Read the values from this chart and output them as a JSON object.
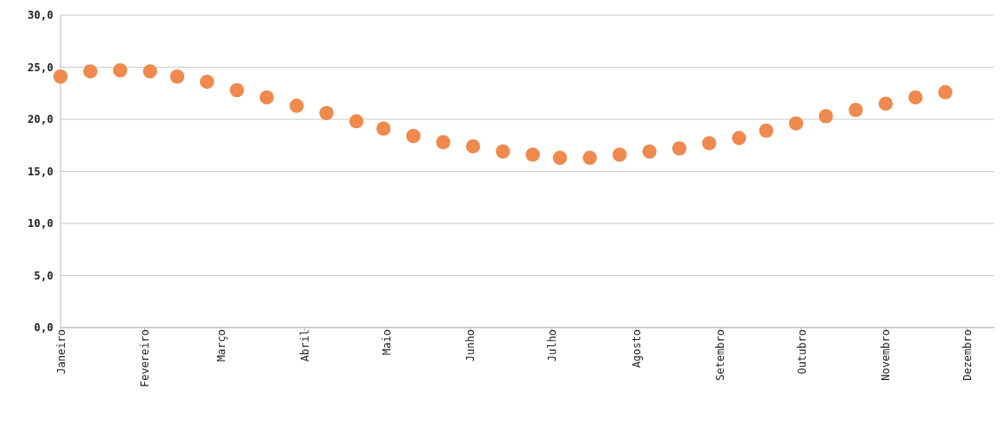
{
  "chart_data": {
    "type": "scatter",
    "x": [
      "--01-01",
      "--01-12",
      "--01-23",
      "--02-03",
      "--02-13",
      "--02-24",
      "--03-07",
      "--03-18",
      "--03-29",
      "--04-09",
      "--04-20",
      "--04-30",
      "--05-11",
      "--05-22",
      "--06-02",
      "--06-13",
      "--06-24",
      "--07-04",
      "--07-15",
      "--07-26",
      "--08-06",
      "--08-17",
      "--08-28",
      "--09-08",
      "--09-18",
      "--09-29",
      "--10-10",
      "--10-21",
      "--11-01",
      "--11-12",
      "--11-23"
    ],
    "series": [
      {
        "color": "#f0894e",
        "values": [
          24.1,
          24.6,
          24.7,
          24.6,
          24.1,
          23.6,
          22.8,
          22.1,
          21.3,
          20.6,
          19.8,
          19.1,
          18.4,
          17.8,
          17.4,
          16.9,
          16.6,
          16.3,
          16.3,
          16.6,
          16.9,
          17.2,
          17.7,
          18.2,
          18.9,
          19.6,
          20.3,
          20.9,
          21.5,
          22.1,
          22.6
        ]
      }
    ],
    "xlim": [
      "--01-01",
      "--12-11"
    ],
    "xticks": [
      {
        "value": "--01-01",
        "label": "Janeiro"
      },
      {
        "value": "--02-01",
        "label": "Fevereiro"
      },
      {
        "value": "--03-01",
        "label": "Março"
      },
      {
        "value": "--04-01",
        "label": "Abril"
      },
      {
        "value": "--05-01",
        "label": "Maio"
      },
      {
        "value": "--06-01",
        "label": "Junho"
      },
      {
        "value": "--07-01",
        "label": "Julho"
      },
      {
        "value": "--08-01",
        "label": "Agosto"
      },
      {
        "value": "--09-01",
        "label": "Setembro"
      },
      {
        "value": "--10-01",
        "label": "Outubro"
      },
      {
        "value": "--11-01",
        "label": "Novembro"
      },
      {
        "value": "--12-01",
        "label": "Dezembro"
      }
    ],
    "ylim": [
      0,
      30
    ],
    "yticks": [
      {
        "value": 0,
        "label": "0,0"
      },
      {
        "value": 5,
        "label": "5,0"
      },
      {
        "value": 10,
        "label": "10,0"
      },
      {
        "value": 15,
        "label": "15,0"
      },
      {
        "value": 20,
        "label": "20,0"
      },
      {
        "value": 25,
        "label": "25,0"
      },
      {
        "value": 30,
        "label": "30,0"
      }
    ],
    "grid": "y",
    "marker": "circle"
  }
}
